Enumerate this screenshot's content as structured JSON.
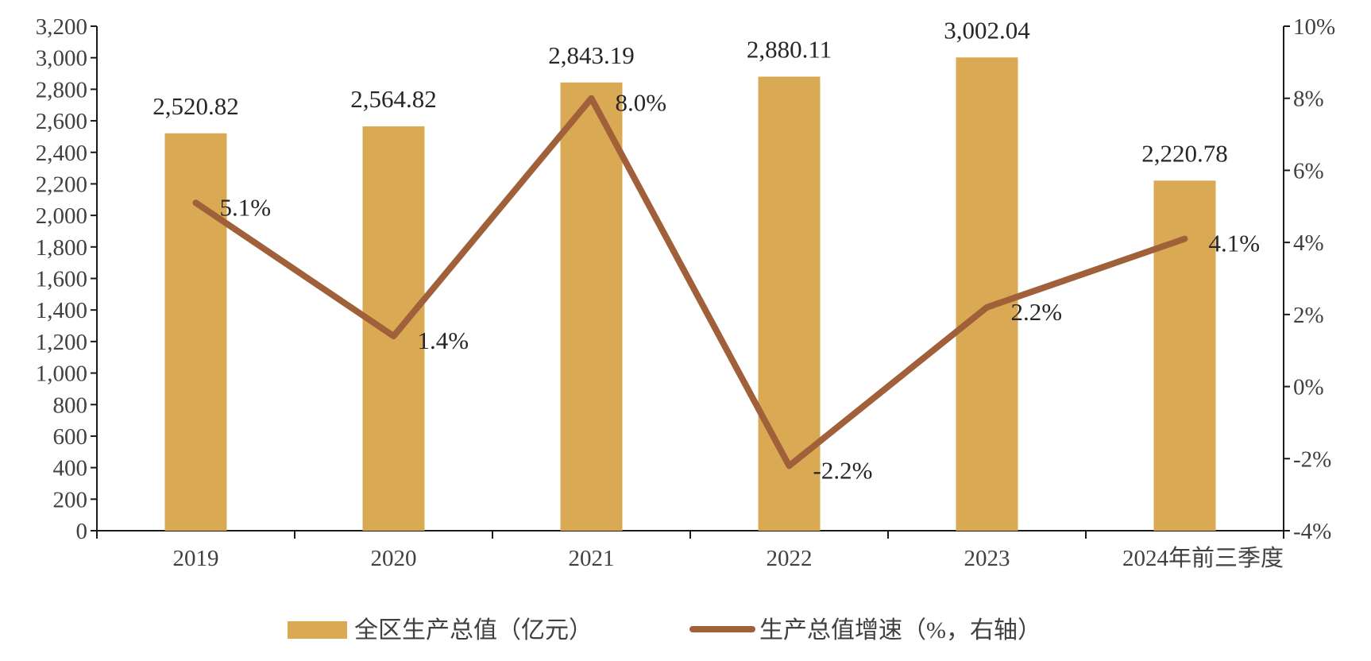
{
  "chart_data": {
    "type": "bar",
    "categories": [
      "2019",
      "2020",
      "2021",
      "2022",
      "2023",
      "2024年前三季度"
    ],
    "series": [
      {
        "name": "全区生产总值（亿元）",
        "type": "bar",
        "axis": "left",
        "values": [
          2520.82,
          2564.82,
          2843.19,
          2880.11,
          3002.04,
          2220.78
        ],
        "labels": [
          "2,520.82",
          "2,564.82",
          "2,843.19",
          "2,880.11",
          "3,002.04",
          "2,220.78"
        ],
        "color": "#D9AA53"
      },
      {
        "name": "生产总值增速（%，右轴）",
        "type": "line",
        "axis": "right",
        "values": [
          5.1,
          1.4,
          8.0,
          -2.2,
          2.2,
          4.1
        ],
        "labels": [
          "5.1%",
          "1.4%",
          "8.0%",
          "-2.2%",
          "2.2%",
          "4.1%"
        ],
        "color": "#A0603A"
      }
    ],
    "y_left": {
      "ylim": [
        0,
        3200
      ],
      "ticks": [
        "0",
        "200",
        "400",
        "600",
        "800",
        "1,000",
        "1,200",
        "1,400",
        "1,600",
        "1,800",
        "2,000",
        "2,200",
        "2,400",
        "2,600",
        "2,800",
        "3,000",
        "3,200"
      ]
    },
    "y_right": {
      "ylim": [
        -4,
        10
      ],
      "ticks": [
        "-4%",
        "-2%",
        "0%",
        "2%",
        "4%",
        "6%",
        "8%",
        "10%"
      ]
    },
    "legend": {
      "position": "bottom",
      "items": [
        "全区生产总值（亿元）",
        "生产总值增速（%，右轴）"
      ]
    },
    "grid": false
  }
}
